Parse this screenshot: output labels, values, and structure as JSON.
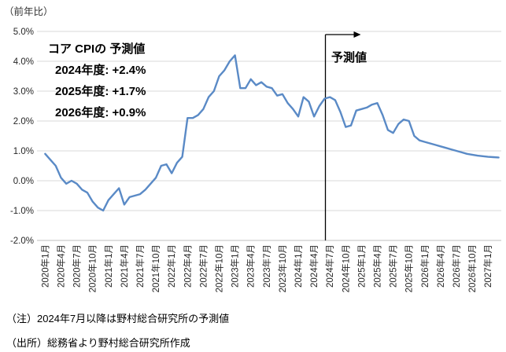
{
  "page": {
    "unit_label": "（前年比）"
  },
  "chart_data": {
    "type": "line",
    "title": "",
    "ylabel": "（前年比）",
    "ylim": [
      -2.0,
      5.0
    ],
    "grid": "horizontal",
    "legend": "none",
    "y_ticks": [
      "5.0%",
      "4.0%",
      "3.0%",
      "2.0%",
      "1.0%",
      "0.0%",
      "-1.0%",
      "-2.0%"
    ],
    "x_tick_labels": [
      "2020年1月",
      "2020年4月",
      "2020年7月",
      "2020年10月",
      "2021年1月",
      "2021年4月",
      "2021年7月",
      "2021年10月",
      "2022年1月",
      "2022年4月",
      "2022年7月",
      "2022年10月",
      "2023年1月",
      "2023年4月",
      "2023年7月",
      "2023年10月",
      "2024年1月",
      "2024年4月",
      "2024年7月",
      "2024年10月",
      "2025年1月",
      "2025年4月",
      "2025年7月",
      "2025年10月",
      "2026年1月",
      "2026年4月",
      "2026年7月",
      "2026年10月",
      "2027年1月"
    ],
    "tick_interval_months": 3,
    "values": [
      0.9,
      0.7,
      0.5,
      0.1,
      -0.1,
      0.0,
      -0.1,
      -0.3,
      -0.4,
      -0.7,
      -0.9,
      -1.0,
      -0.65,
      -0.45,
      -0.25,
      -0.8,
      -0.55,
      -0.5,
      -0.45,
      -0.3,
      -0.1,
      0.1,
      0.5,
      0.55,
      0.25,
      0.6,
      0.8,
      2.1,
      2.1,
      2.2,
      2.4,
      2.8,
      3.0,
      3.5,
      3.7,
      4.0,
      4.2,
      3.1,
      3.1,
      3.4,
      3.2,
      3.3,
      3.15,
      3.1,
      2.85,
      2.9,
      2.6,
      2.4,
      2.15,
      2.8,
      2.65,
      2.15,
      2.5,
      2.75,
      2.8,
      2.7,
      2.3,
      1.8,
      1.85,
      2.35,
      2.4,
      2.45,
      2.55,
      2.6,
      2.2,
      1.7,
      1.6,
      1.9,
      2.05,
      2.0,
      1.5,
      1.35,
      1.3,
      1.25,
      1.2,
      1.15,
      1.1,
      1.05,
      1.0,
      0.95,
      0.9,
      0.87,
      0.84,
      0.82,
      0.8,
      0.79,
      0.78
    ],
    "forecast_divider_index": 53,
    "colors": {
      "line": "#5A8AC6",
      "gridline": "#D9D9D9",
      "axis": "#BFBFBF",
      "divider": "#000000",
      "tick_text": "#262626"
    }
  },
  "annotation": {
    "title": "コア CPIの 予測値",
    "lines": [
      "2024年度: +2.4%",
      "2025年度: +1.7%",
      "2026年度: +0.9%"
    ]
  },
  "forecast_marker": {
    "label": "予測値"
  },
  "notes": {
    "note": "（注）2024年7月以降は野村総合研究所の予測値",
    "source": "（出所）総務省より野村総合研究所作成"
  }
}
